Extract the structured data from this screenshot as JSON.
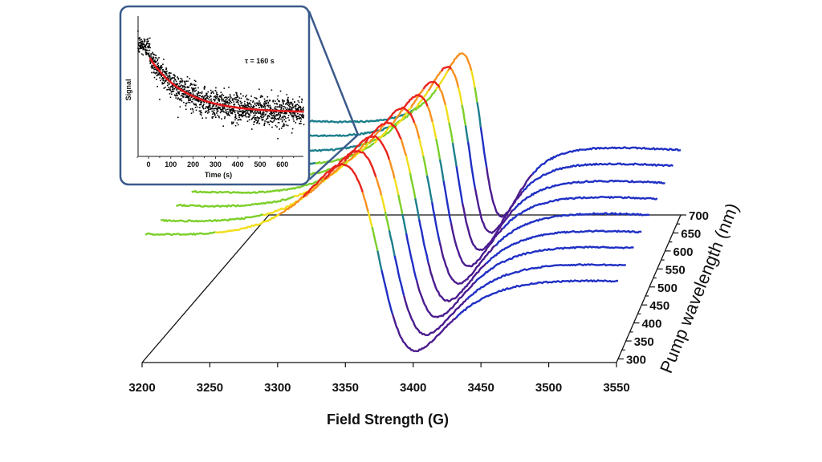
{
  "chart_data": [
    {
      "type": "line",
      "subtype": "3d-waterfall",
      "title": "",
      "xlabel": "Field Strength (G)",
      "zlabel": "Pump wavelength (nm)",
      "ylabel": "",
      "xlim": [
        3200,
        3550
      ],
      "x_ticks": [
        "3200",
        "3250",
        "3300",
        "3350",
        "3400",
        "3450",
        "3500",
        "3550"
      ],
      "z_ticks": [
        "300",
        "350",
        "400",
        "450",
        "500",
        "550",
        "600",
        "650",
        "700"
      ],
      "grid": false,
      "color_scale": "rainbow by signal height (purple low, red high)",
      "colors": [
        "#4b1c8f",
        "#1f2fc4",
        "#1c7f8c",
        "#7ccf2a",
        "#f2de1a",
        "#f7901e",
        "#e8231c"
      ],
      "series": [
        {
          "wavelength_nm": 300,
          "center_G": 3373,
          "linewidth_G": 46,
          "peak_to_peak": 1.5,
          "baseline_start": 1.0,
          "baseline_end": 0.68
        },
        {
          "wavelength_nm": 350,
          "center_G": 3374,
          "linewidth_G": 44,
          "peak_to_peak": 1.48,
          "baseline_start": 0.97,
          "baseline_end": 0.66
        },
        {
          "wavelength_nm": 400,
          "center_G": 3375,
          "linewidth_G": 42,
          "peak_to_peak": 1.46,
          "baseline_start": 0.95,
          "baseline_end": 0.65
        },
        {
          "wavelength_nm": 450,
          "center_G": 3376,
          "linewidth_G": 40,
          "peak_to_peak": 1.44,
          "baseline_start": 0.92,
          "baseline_end": 0.63
        },
        {
          "wavelength_nm": 500,
          "center_G": 3377,
          "linewidth_G": 38,
          "peak_to_peak": 1.42,
          "baseline_start": 0.9,
          "baseline_end": 0.62
        },
        {
          "wavelength_nm": 550,
          "center_G": 3378,
          "linewidth_G": 35,
          "peak_to_peak": 1.39,
          "baseline_start": 0.87,
          "baseline_end": 0.6
        },
        {
          "wavelength_nm": 600,
          "center_G": 3379,
          "linewidth_G": 33,
          "peak_to_peak": 1.37,
          "baseline_start": 0.84,
          "baseline_end": 0.58
        },
        {
          "wavelength_nm": 650,
          "center_G": 3380,
          "linewidth_G": 31,
          "peak_to_peak": 1.35,
          "baseline_start": 0.82,
          "baseline_end": 0.57
        },
        {
          "wavelength_nm": 700,
          "center_G": 3381,
          "linewidth_G": 29,
          "peak_to_peak": 1.33,
          "baseline_start": 0.79,
          "baseline_end": 0.55
        }
      ]
    },
    {
      "type": "scatter",
      "title": "",
      "xlabel": "Time (s)",
      "ylabel": "Signal",
      "xlim": [
        -50,
        700
      ],
      "x_ticks": [
        "0",
        "100",
        "200",
        "300",
        "400",
        "500",
        "600"
      ],
      "annotation": "τ = 160 s",
      "fit": {
        "type": "exponential decay",
        "tau_s": 160,
        "t_start_s": 0,
        "t_end_s": 700,
        "color": "#e31a1c"
      },
      "points_color": "#000000",
      "pre_signal_level": 0.8,
      "signal_at_t0": 0.714,
      "signal_plateau": 0.314
    }
  ],
  "inset": {
    "border_color": "#3b5a8c"
  }
}
